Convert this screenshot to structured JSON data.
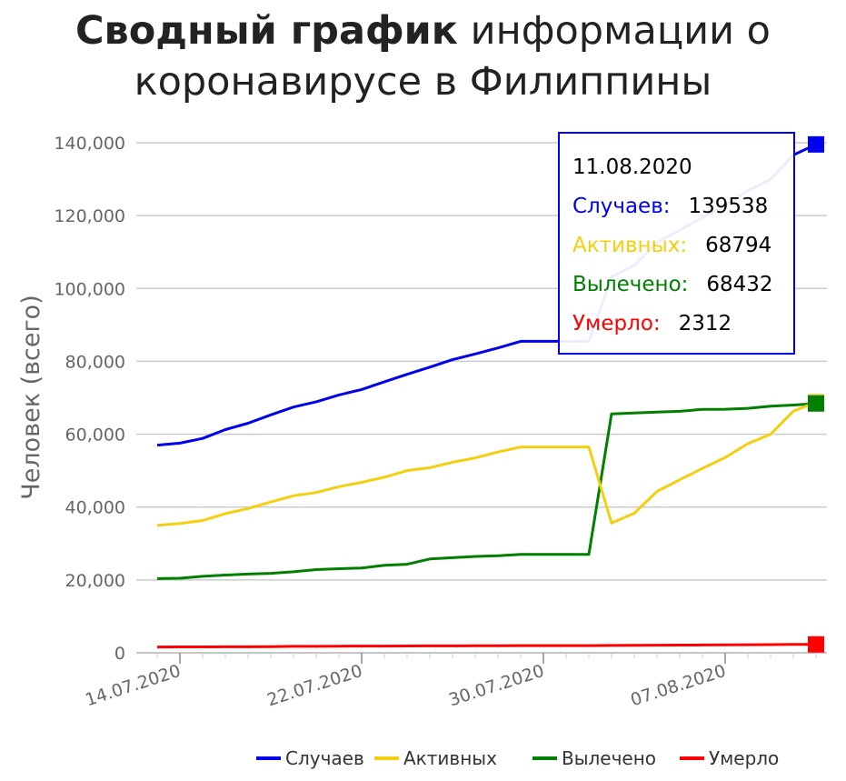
{
  "chart_data": {
    "type": "line",
    "title_bold": "Сводный график",
    "title_rest": " информации о коронавирусе в Филиппины",
    "xlabel": "",
    "ylabel": "Человек (всего)",
    "ylim": [
      0,
      140000
    ],
    "y_ticks": [
      "0",
      "20,000",
      "40,000",
      "60,000",
      "80,000",
      "100,000",
      "120,000",
      "140,000"
    ],
    "x_tick_labels": [
      "14.07.2020",
      "22.07.2020",
      "30.07.2020",
      "07.08.2020"
    ],
    "x_tick_dates": [
      "2020-07-14",
      "2020-07-22",
      "2020-07-30",
      "2020-08-07"
    ],
    "dates": [
      "2020-07-13",
      "2020-07-14",
      "2020-07-15",
      "2020-07-16",
      "2020-07-17",
      "2020-07-18",
      "2020-07-19",
      "2020-07-20",
      "2020-07-21",
      "2020-07-22",
      "2020-07-23",
      "2020-07-24",
      "2020-07-25",
      "2020-07-26",
      "2020-07-27",
      "2020-07-28",
      "2020-07-29",
      "2020-07-30",
      "2020-07-31",
      "2020-08-01",
      "2020-08-02",
      "2020-08-03",
      "2020-08-04",
      "2020-08-05",
      "2020-08-06",
      "2020-08-07",
      "2020-08-08",
      "2020-08-09",
      "2020-08-10",
      "2020-08-11"
    ],
    "grid": true,
    "legend_position": "bottom-right",
    "series": [
      {
        "name": "Случаев",
        "color": "#0000ee",
        "values": [
          57006,
          57545,
          58850,
          61266,
          63001,
          65304,
          67456,
          68898,
          70764,
          72269,
          74390,
          76444,
          78412,
          80448,
          82040,
          83673,
          85486,
          85486,
          85486,
          85486,
          103185,
          106330,
          112593,
          115980,
          119460,
          122754,
          126885,
          129913,
          136638,
          139538
        ]
      },
      {
        "name": "Активных",
        "color": "#f5cf0f",
        "values": [
          35000,
          35500,
          36300,
          38200,
          39600,
          41400,
          43100,
          44000,
          45600,
          46800,
          48200,
          50000,
          50800,
          52300,
          53500,
          55100,
          56500,
          56500,
          56500,
          56500,
          35600,
          38300,
          44300,
          47500,
          50600,
          53600,
          57400,
          60000,
          66300,
          68794
        ]
      },
      {
        "name": "Вылечено",
        "color": "#008000",
        "values": [
          20371,
          20459,
          20976,
          21333,
          21617,
          21811,
          22230,
          22824,
          23072,
          23281,
          24023,
          24301,
          25752,
          26110,
          26446,
          26617,
          26996,
          26996,
          26996,
          26996,
          65557,
          65821,
          66049,
          66270,
          66837,
          66852,
          67117,
          67673,
          68015,
          68432
        ]
      },
      {
        "name": "Умерло",
        "color": "#ff0000",
        "values": [
          1603,
          1614,
          1617,
          1635,
          1651,
          1660,
          1773,
          1783,
          1831,
          1835,
          1843,
          1871,
          1897,
          1903,
          1930,
          1947,
          1962,
          1979,
          1979,
          1979,
          2023,
          2059,
          2104,
          2123,
          2150,
          2168,
          2209,
          2247,
          2293,
          2312
        ]
      }
    ],
    "tooltip": {
      "date": "11.08.2020",
      "rows": [
        {
          "label": "Случаев:",
          "value": "139538",
          "color": "#0000ee"
        },
        {
          "label": "Активных:",
          "value": "68794",
          "color": "#f5cf0f"
        },
        {
          "label": "Вылечено:",
          "value": "68432",
          "color": "#008000"
        },
        {
          "label": "Умерло:",
          "value": "2312",
          "color": "#ff0000"
        }
      ]
    }
  }
}
